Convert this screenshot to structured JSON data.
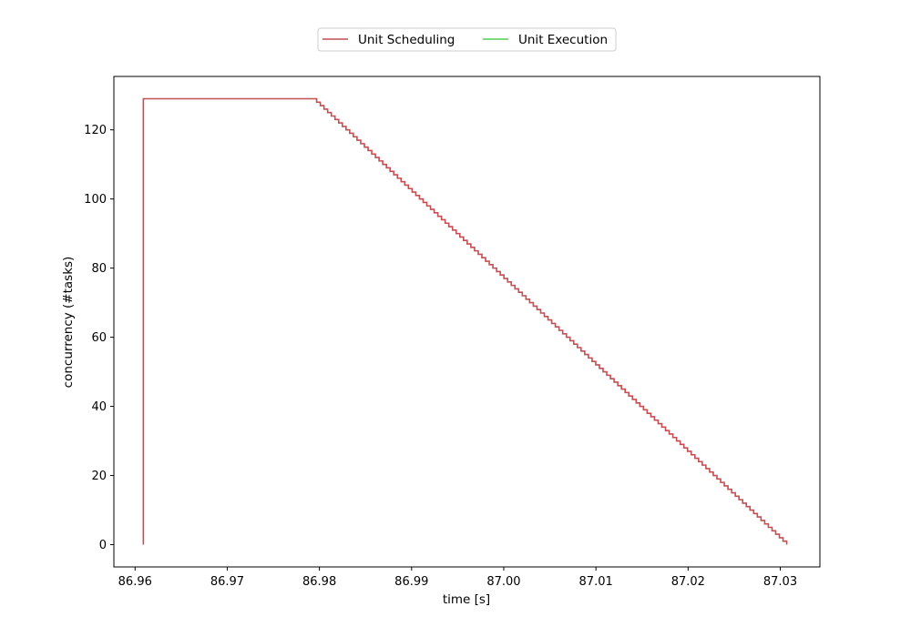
{
  "chart_data": {
    "type": "line",
    "title": "",
    "xlabel": "time [s]",
    "ylabel": "concurrency (#tasks)",
    "xlim": [
      86.9577,
      87.0343
    ],
    "ylim": [
      -6.45,
      135.45
    ],
    "xticks": [
      86.96,
      86.97,
      86.98,
      86.99,
      87.0,
      87.01,
      87.02,
      87.03
    ],
    "xtick_labels": [
      "86.96",
      "86.97",
      "86.98",
      "86.99",
      "87.00",
      "87.01",
      "87.02",
      "87.03"
    ],
    "yticks": [
      0,
      20,
      40,
      60,
      80,
      100,
      120
    ],
    "ytick_labels": [
      "0",
      "20",
      "40",
      "60",
      "80",
      "100",
      "120"
    ],
    "grid": false,
    "legend": "top-center-outside",
    "series": [
      {
        "name": "Unit Scheduling",
        "color": "#c44e52",
        "step": "post",
        "ramp_up": {
          "x": 86.9609,
          "from": 0,
          "to": 129
        },
        "plateau_end": 86.9793,
        "ramp_down": {
          "start": 86.9793,
          "end": 87.0307,
          "from": 129,
          "to": 0
        }
      },
      {
        "name": "Unit Execution",
        "color": "#55cc55",
        "points": []
      }
    ]
  }
}
